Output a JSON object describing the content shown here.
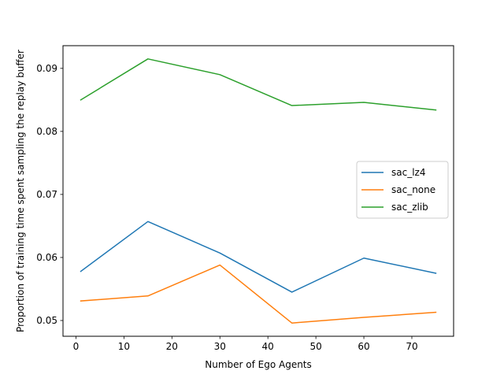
{
  "chart_data": {
    "type": "line",
    "title": "",
    "xlabel": "Number of Ego Agents",
    "ylabel": "Proportion of training time spent sampling the replay buffer",
    "x": [
      1,
      15,
      30,
      45,
      60,
      75
    ],
    "xlim": [
      -2.7,
      78.7
    ],
    "ylim": [
      0.0475,
      0.0936
    ],
    "xticks": [
      0,
      10,
      20,
      30,
      40,
      50,
      60,
      70
    ],
    "xtick_labels": [
      "0",
      "10",
      "20",
      "30",
      "40",
      "50",
      "60",
      "70"
    ],
    "yticks": [
      0.05,
      0.06,
      0.07,
      0.08,
      0.09
    ],
    "ytick_labels": [
      "0.05",
      "0.06",
      "0.07",
      "0.08",
      "0.09"
    ],
    "grid": false,
    "legend_position": "center-right",
    "series": [
      {
        "name": "sac_lz4",
        "color": "#1f77b4",
        "values": [
          0.0578,
          0.0657,
          0.0607,
          0.0545,
          0.0599,
          0.0575
        ]
      },
      {
        "name": "sac_none",
        "color": "#ff7f0e",
        "values": [
          0.0531,
          0.0539,
          0.0588,
          0.0496,
          0.0505,
          0.0513
        ]
      },
      {
        "name": "sac_zlib",
        "color": "#2ca02c",
        "values": [
          0.085,
          0.0915,
          0.089,
          0.0841,
          0.0846,
          0.0834
        ]
      }
    ]
  }
}
